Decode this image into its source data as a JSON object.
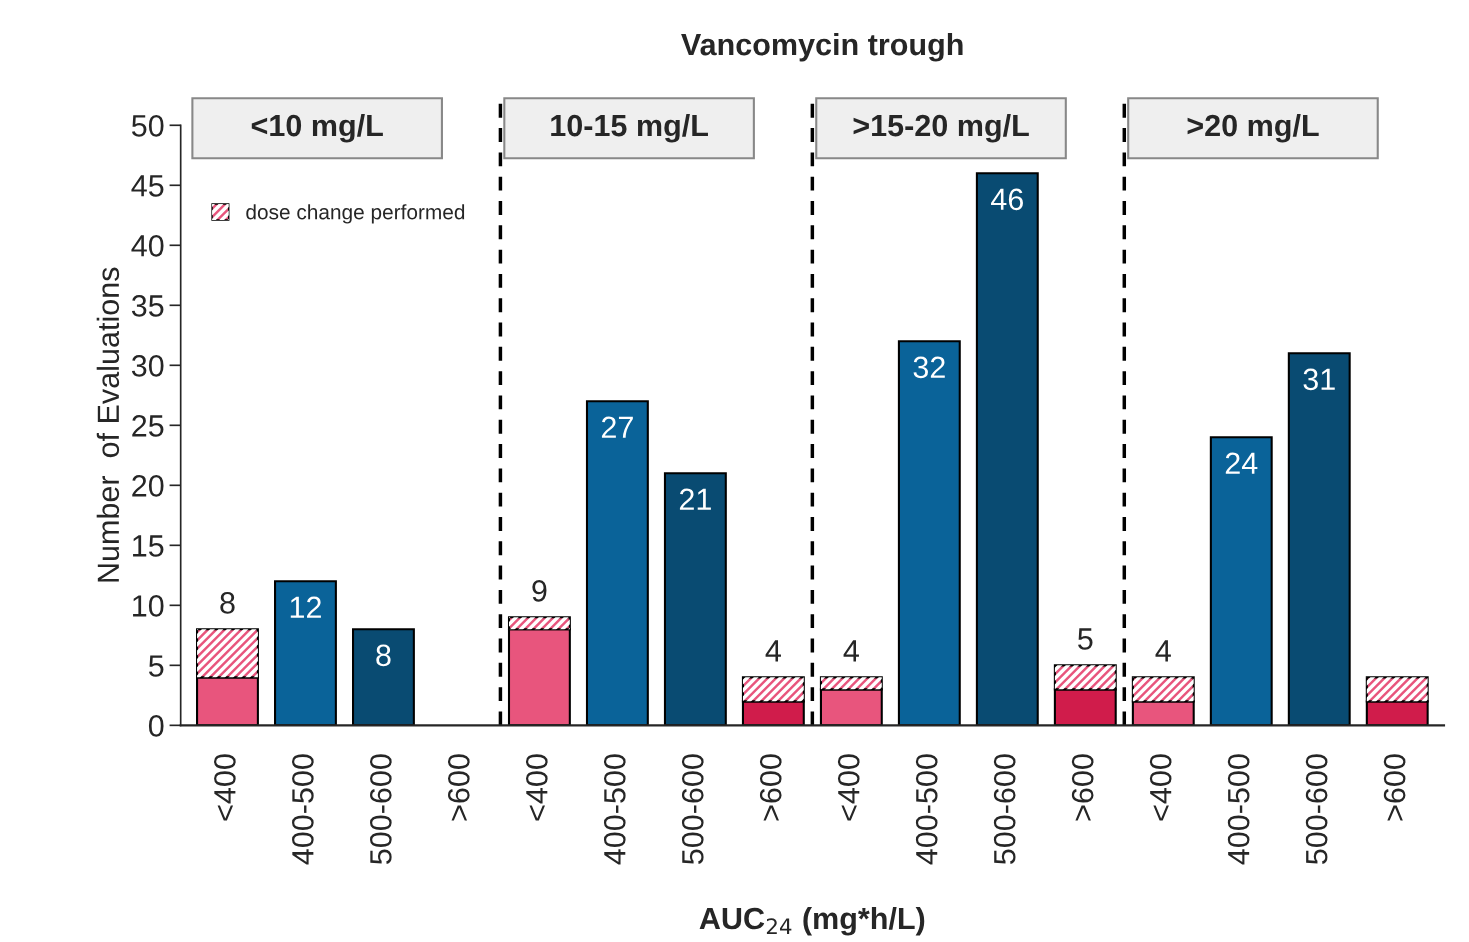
{
  "chart_data": {
    "type": "bar",
    "title": "Vancomycin trough",
    "xlabel": "AUC$_{24}$ (mg*h/L)",
    "ylabel": "Number  of Evaluations",
    "categories": [
      "<400",
      "400-500",
      "500-600",
      ">600",
      "<400",
      "400-500",
      "500-600",
      ">600",
      "<400",
      "400-500",
      "500-600",
      ">600",
      "<400",
      "400-500",
      "500-600",
      ">600"
    ],
    "annotations": [
      "<10 mg/L",
      "10-15 mg/L",
      ">15-20 mg/L",
      ">20 mg/L"
    ],
    "stacked": true,
    "series": [
      {
        "colors": [
          "#e8557d",
          "#0a6399",
          "#094b72",
          "#d01c4b",
          "#e8557d",
          "#0a6399",
          "#094b72",
          "#d01c4b",
          "#e8557d",
          "#0a6399",
          "#094b72",
          "#d01c4b",
          "#e8557d",
          "#0a6399",
          "#094b72",
          "#d01c4b"
        ],
        "values": [
          4,
          12,
          8,
          null,
          8,
          27,
          21,
          2,
          3,
          32,
          46,
          3,
          2,
          24,
          31,
          2
        ],
        "value_labels": [
          null,
          "12",
          "8",
          null,
          null,
          "27",
          "21",
          null,
          null,
          "32",
          "46",
          null,
          null,
          "24",
          "31",
          null
        ]
      },
      {
        "name": "dose change performed",
        "color": "#e8557d",
        "values": [
          4,
          null,
          null,
          null,
          1,
          null,
          null,
          2,
          1,
          null,
          null,
          2,
          2,
          null,
          null,
          2
        ]
      }
    ],
    "totals": [
      "8",
      null,
      null,
      null,
      "9",
      null,
      null,
      "4",
      "4",
      null,
      null,
      "5",
      "4",
      null,
      null,
      null
    ],
    "ylim": [
      0,
      50
    ],
    "yticks": [
      0,
      5,
      10,
      15,
      20,
      25,
      30,
      35,
      40,
      45,
      50
    ],
    "grid": false,
    "legend": "top left"
  }
}
